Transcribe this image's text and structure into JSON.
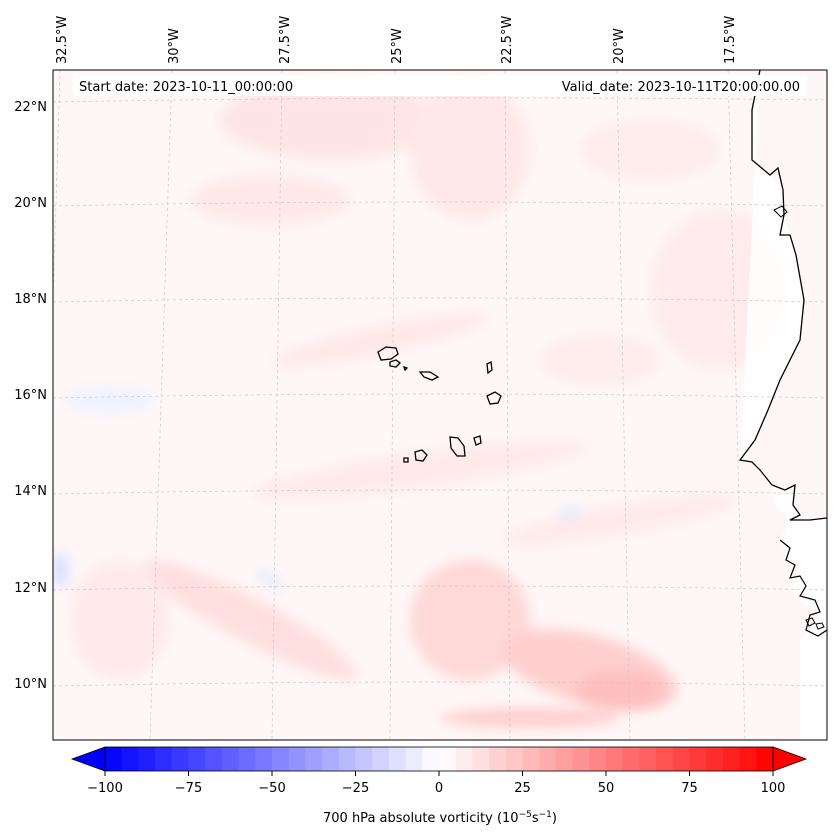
{
  "header": {
    "start_date": "Start date: 2023-10-11_00:00:00",
    "valid_date": "Valid_date: 2023-10-11T20:00:00.00"
  },
  "map": {
    "lon_labels": [
      "32.5°W",
      "30°W",
      "27.5°W",
      "25°W",
      "22.5°W",
      "20°W",
      "17.5°W"
    ],
    "lat_labels": [
      "22°N",
      "20°N",
      "18°N",
      "16°N",
      "14°N",
      "12°N",
      "10°N"
    ],
    "land_color": "#ffffff",
    "coast_color": "#000000",
    "grid_color": "#c8c8c8"
  },
  "colorbar": {
    "ticks": [
      "−100",
      "−75",
      "−50",
      "−25",
      "0",
      "25",
      "50",
      "75",
      "100"
    ],
    "tick_values": [
      -100,
      -75,
      -50,
      -25,
      0,
      25,
      50,
      75,
      100
    ],
    "vmin": -100,
    "vmax": 100,
    "step": 5,
    "label_prefix": "700 hPa absolute vorticity (10",
    "label_exp1": "−5",
    "label_mid": "s",
    "label_exp2": "−1",
    "label_suffix": ")",
    "negative_color": "#0000ff",
    "positive_color": "#ff0000"
  }
}
